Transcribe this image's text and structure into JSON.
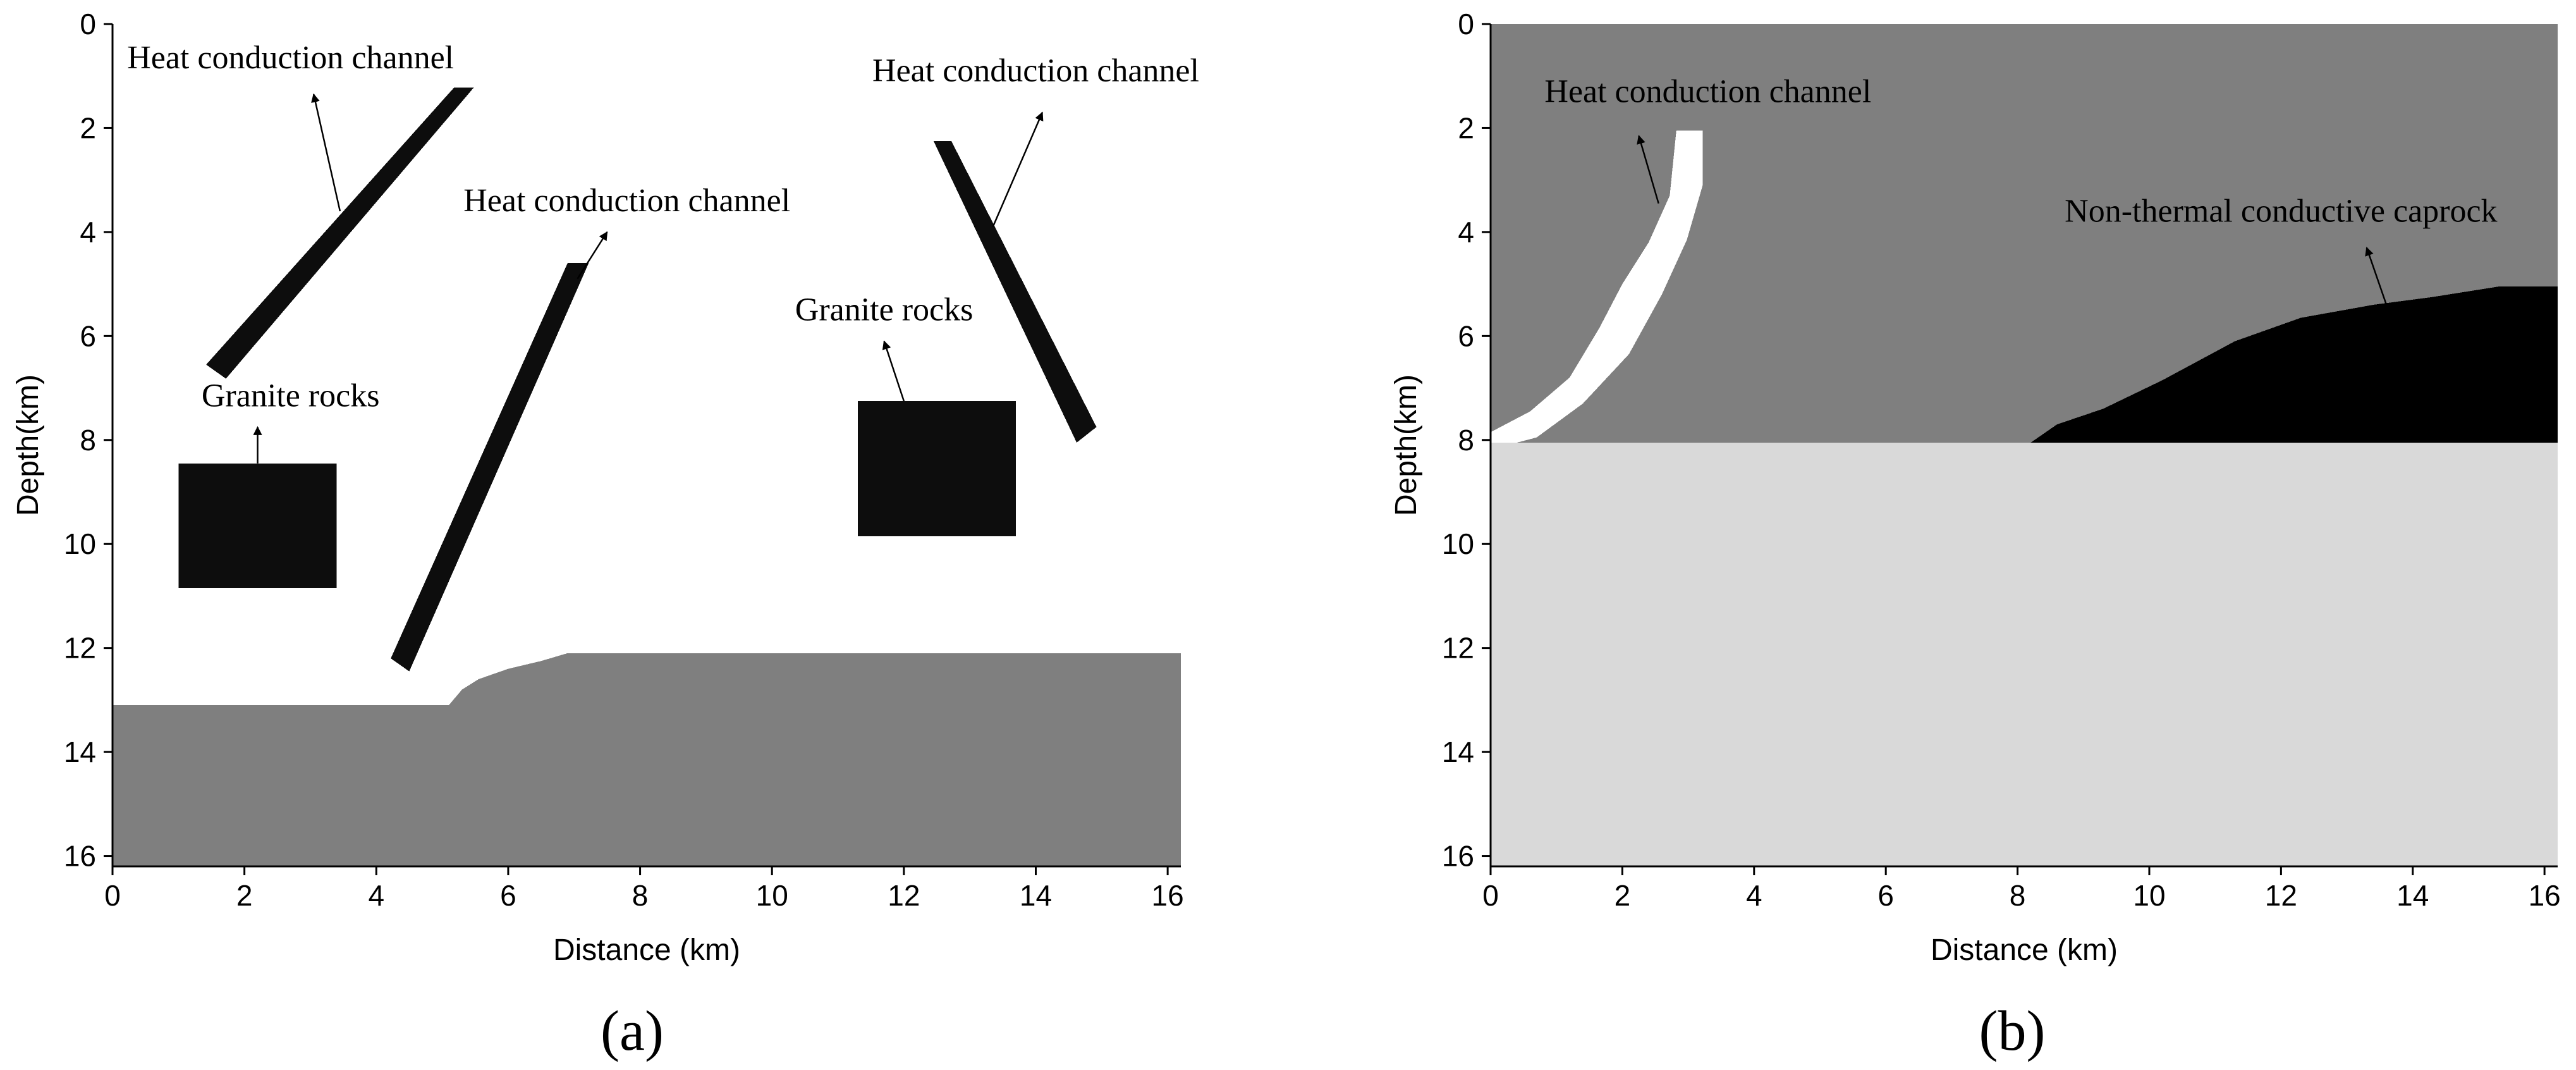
{
  "chart_data": [
    {
      "type": "geologic-section",
      "panel_label": "(a)",
      "xlabel": "Distance (km)",
      "ylabel": "Depth(km)",
      "xlim": [
        0,
        16.2
      ],
      "ylim": [
        0,
        16.2
      ],
      "y_inverted": true,
      "x_ticks": [
        0,
        2,
        4,
        6,
        8,
        10,
        12,
        14,
        16
      ],
      "y_ticks": [
        0,
        2,
        4,
        6,
        8,
        10,
        12,
        14,
        16
      ],
      "colors": {
        "background": "#ffffff",
        "basement": "#7f7f7f",
        "channel": "#0d0d0d",
        "granite": "#0d0d0d"
      },
      "regions": [
        {
          "name": "basement",
          "color": "#7f7f7f",
          "polygon": [
            [
              0,
              13.1
            ],
            [
              5.1,
              13.1
            ],
            [
              5.3,
              12.8
            ],
            [
              5.55,
              12.6
            ],
            [
              6.0,
              12.4
            ],
            [
              6.5,
              12.25
            ],
            [
              6.9,
              12.1
            ],
            [
              16.2,
              12.1
            ],
            [
              16.2,
              16.2
            ],
            [
              0,
              16.2
            ]
          ]
        },
        {
          "name": "channel-1",
          "color": "#0d0d0d",
          "polygon": [
            [
              1.42,
              6.55
            ],
            [
              5.18,
              1.22
            ],
            [
              5.48,
              1.22
            ],
            [
              1.72,
              6.82
            ]
          ]
        },
        {
          "name": "channel-2",
          "color": "#0d0d0d",
          "polygon": [
            [
              4.22,
              12.2
            ],
            [
              6.9,
              4.6
            ],
            [
              7.22,
              4.6
            ],
            [
              4.5,
              12.45
            ]
          ]
        },
        {
          "name": "channel-3",
          "color": "#0d0d0d",
          "polygon": [
            [
              12.45,
              2.25
            ],
            [
              12.72,
              2.25
            ],
            [
              14.92,
              7.75
            ],
            [
              14.62,
              8.05
            ]
          ]
        },
        {
          "name": "granite-1",
          "color": "#0d0d0d",
          "polygon": [
            [
              1.0,
              8.45
            ],
            [
              3.4,
              8.45
            ],
            [
              3.4,
              10.85
            ],
            [
              1.0,
              10.85
            ]
          ]
        },
        {
          "name": "granite-2",
          "color": "#0d0d0d",
          "polygon": [
            [
              11.3,
              7.25
            ],
            [
              13.7,
              7.25
            ],
            [
              13.7,
              9.85
            ],
            [
              11.3,
              9.85
            ]
          ]
        }
      ],
      "annotations": [
        {
          "text": "Heat conduction channel",
          "text_at": [
            2.7,
            0.85
          ],
          "arrow_from": [
            3.45,
            3.6
          ],
          "arrow_to": [
            3.05,
            1.35
          ]
        },
        {
          "text": "Heat conduction channel",
          "text_at": [
            7.8,
            3.6
          ],
          "arrow_from": [
            7.05,
            4.9
          ],
          "arrow_to": [
            7.5,
            4.0
          ]
        },
        {
          "text": "Heat conduction channel",
          "text_at": [
            14.0,
            1.1
          ],
          "arrow_from": [
            13.35,
            3.9
          ],
          "arrow_to": [
            14.1,
            1.7
          ]
        },
        {
          "text": "Granite rocks",
          "text_at": [
            2.7,
            7.35
          ],
          "arrow_from": [
            2.2,
            8.45
          ],
          "arrow_to": [
            2.2,
            7.75
          ]
        },
        {
          "text": "Granite rocks",
          "text_at": [
            11.7,
            5.7
          ],
          "arrow_from": [
            12.0,
            7.25
          ],
          "arrow_to": [
            11.7,
            6.1
          ]
        }
      ]
    },
    {
      "type": "geologic-section",
      "panel_label": "(b)",
      "xlabel": "Distance (km)",
      "ylabel": "Depth(km)",
      "xlim": [
        0,
        16.2
      ],
      "ylim": [
        0,
        16.2
      ],
      "y_inverted": true,
      "x_ticks": [
        0,
        2,
        4,
        6,
        8,
        10,
        12,
        14,
        16
      ],
      "y_ticks": [
        0,
        2,
        4,
        6,
        8,
        10,
        12,
        14,
        16
      ],
      "colors": {
        "upper_layer": "#7f7f7f",
        "lower_layer": "#d9d9d9",
        "channel": "#ffffff",
        "caprock": "#000000"
      },
      "regions": [
        {
          "name": "upper-layer",
          "color": "#7f7f7f",
          "polygon": [
            [
              0,
              0
            ],
            [
              16.2,
              0
            ],
            [
              16.2,
              8.05
            ],
            [
              0,
              8.05
            ]
          ]
        },
        {
          "name": "lower-layer",
          "color": "#d9d9d9",
          "polygon": [
            [
              0,
              8.05
            ],
            [
              16.2,
              8.05
            ],
            [
              16.2,
              16.2
            ],
            [
              0,
              16.2
            ]
          ]
        },
        {
          "name": "heat-conduction-channel",
          "color": "#ffffff",
          "polygon": [
            [
              0,
              7.85
            ],
            [
              0.6,
              7.45
            ],
            [
              1.2,
              6.8
            ],
            [
              1.65,
              5.85
            ],
            [
              2.0,
              5.0
            ],
            [
              2.4,
              4.2
            ],
            [
              2.72,
              3.3
            ],
            [
              2.82,
              2.05
            ],
            [
              3.22,
              2.05
            ],
            [
              3.22,
              3.1
            ],
            [
              2.98,
              4.15
            ],
            [
              2.6,
              5.2
            ],
            [
              2.1,
              6.35
            ],
            [
              1.4,
              7.3
            ],
            [
              0.7,
              7.95
            ],
            [
              0.4,
              8.05
            ],
            [
              0,
              8.05
            ]
          ]
        },
        {
          "name": "caprock",
          "color": "#000000",
          "polygon": [
            [
              8.2,
              8.05
            ],
            [
              8.6,
              7.7
            ],
            [
              9.3,
              7.4
            ],
            [
              10.2,
              6.85
            ],
            [
              11.3,
              6.1
            ],
            [
              12.3,
              5.65
            ],
            [
              13.4,
              5.4
            ],
            [
              14.3,
              5.25
            ],
            [
              15.3,
              5.05
            ],
            [
              16.2,
              5.05
            ],
            [
              16.2,
              8.05
            ]
          ]
        }
      ],
      "annotations": [
        {
          "text": "Heat conduction channel",
          "text_at": [
            3.3,
            1.5
          ],
          "arrow_from": [
            2.55,
            3.45
          ],
          "arrow_to": [
            2.25,
            2.15
          ]
        },
        {
          "text": "Non-thermal conductive caprock",
          "text_at": [
            12.0,
            3.8
          ],
          "arrow_from": [
            13.6,
            5.4
          ],
          "arrow_to": [
            13.3,
            4.3
          ]
        }
      ]
    }
  ]
}
